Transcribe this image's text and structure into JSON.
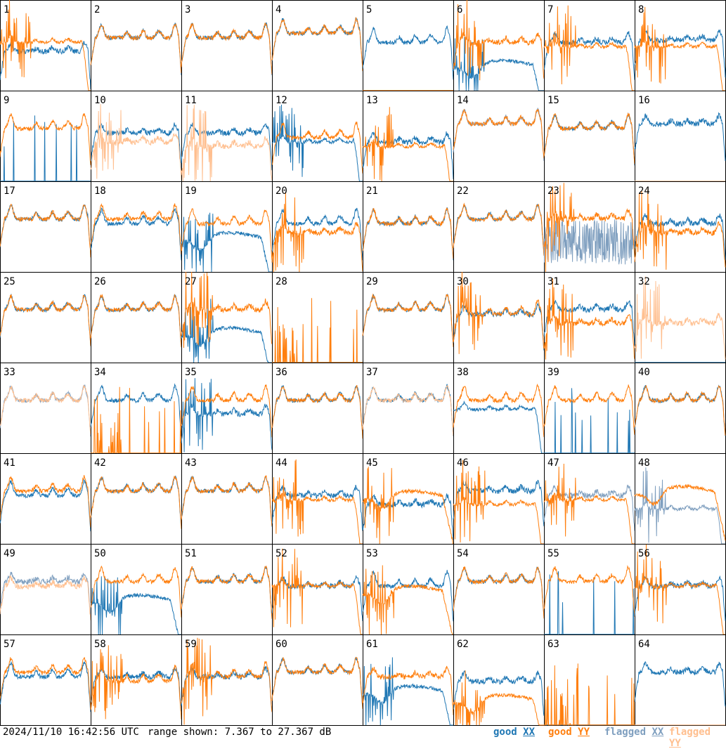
{
  "footer": {
    "timestamp": "2024/11/10 16:42:56 UTC",
    "range": "range shown: 7.367 to 27.367 dB"
  },
  "legend": [
    {
      "label": "good XX",
      "color": "#1f77b4"
    },
    {
      "label": "good YY",
      "color": "#ff7f0e"
    },
    {
      "label": "flagged XX",
      "color": "#7f9fbf"
    },
    {
      "label": "flagged YY",
      "color": "#ffbf8f"
    }
  ],
  "chart_data": {
    "type": "line",
    "grid_rows": 8,
    "grid_cols": 8,
    "ylim_db": [
      7.367,
      27.367
    ],
    "series_names": [
      "good XX",
      "good YY",
      "flagged XX",
      "flagged YY"
    ],
    "colors": {
      "good_xx": "#1f77b4",
      "good_yy": "#ff7f0e",
      "flagged_xx": "#7f9fbf",
      "flagged_yy": "#ffbf8f"
    },
    "panels": [
      {
        "label": "1",
        "xx": "good",
        "yy": "good",
        "xx_profile": "flat",
        "yy_profile": "droop",
        "xx_level": 16,
        "yy_level": 18,
        "spikes": "yy"
      },
      {
        "label": "2",
        "xx": "good",
        "yy": "good",
        "xx_profile": "typical",
        "yy_profile": "typical",
        "xx_level": 19,
        "yy_level": 19,
        "spikes": "none"
      },
      {
        "label": "3",
        "xx": "good",
        "yy": "good",
        "xx_profile": "typical",
        "yy_profile": "typical",
        "xx_level": 19,
        "yy_level": 19,
        "spikes": "none"
      },
      {
        "label": "4",
        "xx": "good",
        "yy": "good",
        "xx_profile": "typical",
        "yy_profile": "typical",
        "xx_level": 20,
        "yy_level": 20,
        "spikes": "none"
      },
      {
        "label": "5",
        "xx": "good",
        "yy": "good",
        "xx_profile": "typical",
        "yy_profile": "dead",
        "xx_level": 18,
        "yy_level": 7.5,
        "spikes": "none"
      },
      {
        "label": "6",
        "xx": "good",
        "yy": "good",
        "xx_profile": "bump",
        "yy_profile": "flat",
        "xx_level": 12,
        "yy_level": 18,
        "spikes": "both"
      },
      {
        "label": "7",
        "xx": "good",
        "yy": "good",
        "xx_profile": "flat",
        "yy_profile": "droop",
        "xx_level": 18,
        "yy_level": 17,
        "spikes": "yy"
      },
      {
        "label": "8",
        "xx": "good",
        "yy": "good",
        "xx_profile": "flat",
        "yy_profile": "droop",
        "xx_level": 18.5,
        "yy_level": 17,
        "spikes": "yy"
      },
      {
        "label": "9",
        "xx": "good",
        "yy": "good",
        "xx_profile": "sparse",
        "yy_profile": "typical",
        "xx_level": 8,
        "yy_level": 19,
        "spikes": "none"
      },
      {
        "label": "10",
        "xx": "good",
        "yy": "flagged",
        "xx_profile": "flat",
        "yy_profile": "flat",
        "xx_level": 18,
        "yy_level": 16,
        "spikes": "yy"
      },
      {
        "label": "11",
        "xx": "good",
        "yy": "flagged",
        "xx_profile": "flat",
        "yy_profile": "flat",
        "xx_level": 18,
        "yy_level": 15,
        "spikes": "yy"
      },
      {
        "label": "12",
        "xx": "good",
        "yy": "good",
        "xx_profile": "droop",
        "yy_profile": "typical",
        "xx_level": 16,
        "yy_level": 17,
        "spikes": "xx"
      },
      {
        "label": "13",
        "xx": "good",
        "yy": "good",
        "xx_profile": "flat",
        "yy_profile": "droop",
        "xx_level": 16,
        "yy_level": 15,
        "spikes": "yy"
      },
      {
        "label": "14",
        "xx": "flagged",
        "yy": "good",
        "xx_profile": "typical",
        "yy_profile": "typical",
        "xx_level": 20,
        "yy_level": 20,
        "spikes": "none"
      },
      {
        "label": "15",
        "xx": "good",
        "yy": "good",
        "xx_profile": "typical",
        "yy_profile": "typical",
        "xx_level": 19,
        "yy_level": 19,
        "spikes": "none"
      },
      {
        "label": "16",
        "xx": "good",
        "yy": "flagged",
        "xx_profile": "flat",
        "yy_profile": "dead",
        "xx_level": 20,
        "yy_level": 7.5,
        "spikes": "none"
      },
      {
        "label": "17",
        "xx": "good",
        "yy": "good",
        "xx_profile": "typical",
        "yy_profile": "typical",
        "xx_level": 19,
        "yy_level": 19,
        "spikes": "none"
      },
      {
        "label": "18",
        "xx": "good",
        "yy": "good",
        "xx_profile": "typical",
        "yy_profile": "typical",
        "xx_level": 18,
        "yy_level": 19,
        "spikes": "none"
      },
      {
        "label": "19",
        "xx": "good",
        "yy": "good",
        "xx_profile": "bump",
        "yy_profile": "typical",
        "xx_level": 14,
        "yy_level": 18,
        "spikes": "xx"
      },
      {
        "label": "20",
        "xx": "good",
        "yy": "good",
        "xx_profile": "typical",
        "yy_profile": "flat",
        "xx_level": 18,
        "yy_level": 16,
        "spikes": "yy"
      },
      {
        "label": "21",
        "xx": "good",
        "yy": "good",
        "xx_profile": "typical",
        "yy_profile": "typical",
        "xx_level": 18,
        "yy_level": 18,
        "spikes": "none"
      },
      {
        "label": "22",
        "xx": "good",
        "yy": "good",
        "xx_profile": "typical",
        "yy_profile": "typical",
        "xx_level": 19,
        "yy_level": 19,
        "spikes": "none"
      },
      {
        "label": "23",
        "xx": "flagged",
        "yy": "good",
        "xx_profile": "noisy",
        "yy_profile": "flat",
        "xx_level": 12,
        "yy_level": 19,
        "spikes": "yy"
      },
      {
        "label": "24",
        "xx": "good",
        "yy": "good",
        "xx_profile": "flat",
        "yy_profile": "flat",
        "xx_level": 18,
        "yy_level": 16,
        "spikes": "yy"
      },
      {
        "label": "25",
        "xx": "good",
        "yy": "good",
        "xx_profile": "typical",
        "yy_profile": "typical",
        "xx_level": 19,
        "yy_level": 19,
        "spikes": "none"
      },
      {
        "label": "26",
        "xx": "good",
        "yy": "good",
        "xx_profile": "typical",
        "yy_profile": "typical",
        "xx_level": 19,
        "yy_level": 19,
        "spikes": "none"
      },
      {
        "label": "27",
        "xx": "good",
        "yy": "good",
        "xx_profile": "bump",
        "yy_profile": "flat",
        "xx_level": 13,
        "yy_level": 19,
        "spikes": "both"
      },
      {
        "label": "28",
        "xx": "good",
        "yy": "good",
        "xx_profile": "dead",
        "yy_profile": "sparse",
        "xx_level": 7.5,
        "yy_level": 8,
        "spikes": "yy"
      },
      {
        "label": "29",
        "xx": "good",
        "yy": "good",
        "xx_profile": "typical",
        "yy_profile": "typical",
        "xx_level": 19,
        "yy_level": 19,
        "spikes": "none"
      },
      {
        "label": "30",
        "xx": "good",
        "yy": "good",
        "xx_profile": "flat",
        "yy_profile": "typical",
        "xx_level": 18,
        "yy_level": 18,
        "spikes": "yy"
      },
      {
        "label": "31",
        "xx": "good",
        "yy": "good",
        "xx_profile": "flat",
        "yy_profile": "flat",
        "xx_level": 19,
        "yy_level": 16,
        "spikes": "yy"
      },
      {
        "label": "32",
        "xx": "good",
        "yy": "flagged",
        "xx_profile": "dead",
        "yy_profile": "flat",
        "xx_level": 7.5,
        "yy_level": 16,
        "spikes": "yy"
      },
      {
        "label": "33",
        "xx": "flagged",
        "yy": "flagged",
        "xx_profile": "typical",
        "yy_profile": "typical",
        "xx_level": 19,
        "yy_level": 19,
        "spikes": "none"
      },
      {
        "label": "34",
        "xx": "good",
        "yy": "good",
        "xx_profile": "typical",
        "yy_profile": "sparse",
        "xx_level": 19,
        "yy_level": 8,
        "spikes": "yy"
      },
      {
        "label": "35",
        "xx": "good",
        "yy": "good",
        "xx_profile": "flat",
        "yy_profile": "typical",
        "xx_level": 16,
        "yy_level": 19,
        "spikes": "xx"
      },
      {
        "label": "36",
        "xx": "good",
        "yy": "good",
        "xx_profile": "typical",
        "yy_profile": "typical",
        "xx_level": 19,
        "yy_level": 19,
        "spikes": "none"
      },
      {
        "label": "37",
        "xx": "good",
        "yy": "flagged",
        "xx_profile": "typical",
        "yy_profile": "typical",
        "xx_level": 19,
        "yy_level": 19,
        "spikes": "none"
      },
      {
        "label": "38",
        "xx": "good",
        "yy": "good",
        "xx_profile": "droop",
        "yy_profile": "typical",
        "xx_level": 17,
        "yy_level": 19,
        "spikes": "none"
      },
      {
        "label": "39",
        "xx": "good",
        "yy": "good",
        "xx_profile": "sparse",
        "yy_profile": "typical",
        "xx_level": 8,
        "yy_level": 19,
        "spikes": "none"
      },
      {
        "label": "40",
        "xx": "good",
        "yy": "good",
        "xx_profile": "typical",
        "yy_profile": "typical",
        "xx_level": 19,
        "yy_level": 19,
        "spikes": "none"
      },
      {
        "label": "41",
        "xx": "good",
        "yy": "good",
        "xx_profile": "typical",
        "yy_profile": "typical",
        "xx_level": 18,
        "yy_level": 19,
        "spikes": "none"
      },
      {
        "label": "42",
        "xx": "good",
        "yy": "good",
        "xx_profile": "typical",
        "yy_profile": "typical",
        "xx_level": 19,
        "yy_level": 19,
        "spikes": "none"
      },
      {
        "label": "43",
        "xx": "good",
        "yy": "good",
        "xx_profile": "typical",
        "yy_profile": "typical",
        "xx_level": 19,
        "yy_level": 19,
        "spikes": "none"
      },
      {
        "label": "44",
        "xx": "good",
        "yy": "good",
        "xx_profile": "flat",
        "yy_profile": "droop",
        "xx_level": 18,
        "yy_level": 17,
        "spikes": "yy"
      },
      {
        "label": "45",
        "xx": "good",
        "yy": "good",
        "xx_profile": "flat",
        "yy_profile": "bump",
        "xx_level": 16,
        "yy_level": 17,
        "spikes": "yy"
      },
      {
        "label": "46",
        "xx": "good",
        "yy": "good",
        "xx_profile": "flat",
        "yy_profile": "droop",
        "xx_level": 19,
        "yy_level": 16,
        "spikes": "yy"
      },
      {
        "label": "47",
        "xx": "flagged",
        "yy": "good",
        "xx_profile": "flat",
        "yy_profile": "droop",
        "xx_level": 18,
        "yy_level": 17,
        "spikes": "yy"
      },
      {
        "label": "48",
        "xx": "flagged",
        "yy": "good",
        "xx_profile": "droop",
        "yy_profile": "bump",
        "xx_level": 15,
        "yy_level": 18,
        "spikes": "xx"
      },
      {
        "label": "49",
        "xx": "flagged",
        "yy": "flagged",
        "xx_profile": "flat",
        "yy_profile": "flat",
        "xx_level": 19,
        "yy_level": 18,
        "spikes": "none"
      },
      {
        "label": "50",
        "xx": "good",
        "yy": "good",
        "xx_profile": "bump",
        "yy_profile": "typical",
        "xx_level": 14,
        "yy_level": 19,
        "spikes": "xx"
      },
      {
        "label": "51",
        "xx": "good",
        "yy": "good",
        "xx_profile": "typical",
        "yy_profile": "typical",
        "xx_level": 19,
        "yy_level": 19,
        "spikes": "none"
      },
      {
        "label": "52",
        "xx": "good",
        "yy": "good",
        "xx_profile": "flat",
        "yy_profile": "droop",
        "xx_level": 18,
        "yy_level": 18,
        "spikes": "yy"
      },
      {
        "label": "53",
        "xx": "good",
        "yy": "good",
        "xx_profile": "typical",
        "yy_profile": "bump",
        "xx_level": 18,
        "yy_level": 16,
        "spikes": "yy"
      },
      {
        "label": "54",
        "xx": "good",
        "yy": "good",
        "xx_profile": "typical",
        "yy_profile": "typical",
        "xx_level": 19,
        "yy_level": 19,
        "spikes": "none"
      },
      {
        "label": "55",
        "xx": "good",
        "yy": "good",
        "xx_profile": "sparse",
        "yy_profile": "typical",
        "xx_level": 8,
        "yy_level": 19,
        "spikes": "none"
      },
      {
        "label": "56",
        "xx": "good",
        "yy": "good",
        "xx_profile": "flat",
        "yy_profile": "droop",
        "xx_level": 18,
        "yy_level": 18,
        "spikes": "yy"
      },
      {
        "label": "57",
        "xx": "good",
        "yy": "good",
        "xx_profile": "typical",
        "yy_profile": "typical",
        "xx_level": 18,
        "yy_level": 19,
        "spikes": "none"
      },
      {
        "label": "58",
        "xx": "good",
        "yy": "good",
        "xx_profile": "flat",
        "yy_profile": "typical",
        "xx_level": 18,
        "yy_level": 17,
        "spikes": "yy"
      },
      {
        "label": "59",
        "xx": "good",
        "yy": "good",
        "xx_profile": "flat",
        "yy_profile": "typical",
        "xx_level": 18,
        "yy_level": 18,
        "spikes": "yy"
      },
      {
        "label": "60",
        "xx": "good",
        "yy": "good",
        "xx_profile": "typical",
        "yy_profile": "typical",
        "xx_level": 19,
        "yy_level": 19,
        "spikes": "none"
      },
      {
        "label": "61",
        "xx": "good",
        "yy": "good",
        "xx_profile": "bump",
        "yy_profile": "flat",
        "xx_level": 14,
        "yy_level": 18,
        "spikes": "xx"
      },
      {
        "label": "62",
        "xx": "good",
        "yy": "good",
        "xx_profile": "flat",
        "yy_profile": "bump",
        "xx_level": 17,
        "yy_level": 12,
        "spikes": "yy"
      },
      {
        "label": "63",
        "xx": "good",
        "yy": "good",
        "xx_profile": "dead",
        "yy_profile": "sparse",
        "xx_level": 7.5,
        "yy_level": 8,
        "spikes": "yy"
      },
      {
        "label": "64",
        "xx": "good",
        "yy": "flagged",
        "xx_profile": "flat",
        "yy_profile": "dead",
        "xx_level": 19,
        "yy_level": 7.5,
        "spikes": "none"
      }
    ]
  }
}
